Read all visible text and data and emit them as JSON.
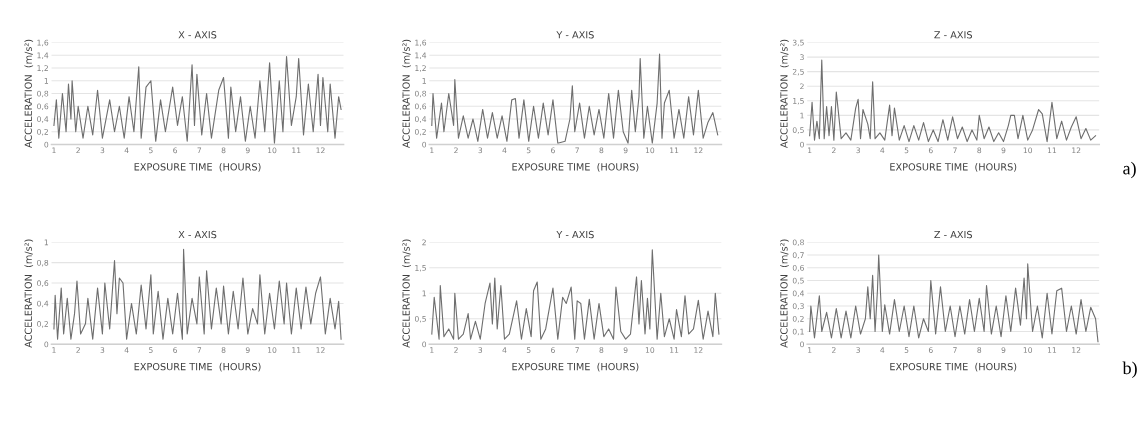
{
  "chart_data": [
    {
      "type": "line",
      "title": "X - AXIS",
      "xlabel": "EXPOSURE TIME  (HOURS)",
      "ylabel": "ACCELERATION  (m/s²)",
      "grid": "y",
      "xlim": [
        0.9,
        12.95
      ],
      "xticks": [
        1,
        2,
        3,
        4,
        5,
        6,
        7,
        8,
        9,
        10,
        11,
        12
      ],
      "ylim": [
        0,
        1.6
      ],
      "yticks": [
        0,
        {
          "value": 0.2,
          "label": "0,2"
        },
        {
          "value": 0.4,
          "label": "0,4"
        },
        {
          "value": 0.6,
          "label": "0,6"
        },
        {
          "value": 0.8,
          "label": "0,8"
        },
        1,
        {
          "value": 1.2,
          "label": "1,2"
        },
        {
          "value": 1.4,
          "label": "1,4"
        },
        {
          "value": 1.6,
          "label": "1,6"
        }
      ],
      "series": [
        {
          "color": "#6e6e6e",
          "x": [
            1.0,
            1.1,
            1.2,
            1.35,
            1.5,
            1.6,
            1.7,
            1.75,
            1.9,
            2.0,
            2.2,
            2.4,
            2.6,
            2.8,
            3.0,
            3.3,
            3.5,
            3.7,
            3.9,
            4.1,
            4.3,
            4.5,
            4.6,
            4.8,
            5.0,
            5.2,
            5.4,
            5.6,
            5.9,
            6.1,
            6.3,
            6.5,
            6.7,
            6.8,
            6.9,
            7.1,
            7.3,
            7.5,
            7.8,
            8.0,
            8.2,
            8.3,
            8.5,
            8.7,
            8.9,
            9.1,
            9.3,
            9.5,
            9.7,
            9.9,
            10.1,
            10.3,
            10.45,
            10.6,
            10.8,
            11.0,
            11.1,
            11.3,
            11.5,
            11.7,
            11.9,
            12.0,
            12.1,
            12.3,
            12.4,
            12.6,
            12.75,
            12.85
          ],
          "values": [
            0.3,
            0.7,
            0.1,
            0.8,
            0.2,
            0.95,
            0.4,
            1.0,
            0.2,
            0.6,
            0.1,
            0.6,
            0.15,
            0.85,
            0.1,
            0.7,
            0.2,
            0.6,
            0.1,
            0.75,
            0.2,
            1.22,
            0.1,
            0.9,
            1.0,
            0.05,
            0.7,
            0.2,
            0.9,
            0.3,
            0.75,
            0.05,
            1.25,
            0.3,
            1.1,
            0.15,
            0.8,
            0.1,
            0.85,
            1.05,
            0.1,
            0.9,
            0.2,
            0.75,
            0.05,
            0.6,
            0.1,
            1.0,
            0.2,
            1.28,
            0.02,
            1.0,
            0.2,
            1.38,
            0.3,
            0.75,
            1.35,
            0.15,
            0.95,
            0.2,
            1.1,
            0.3,
            1.05,
            0.2,
            0.95,
            0.1,
            0.75,
            0.55
          ]
        }
      ]
    },
    {
      "type": "line",
      "title": "Y - AXIS",
      "xlabel": "EXPOSURE TIME  (HOURS)",
      "ylabel": "ACCELERATION  (m/s²)",
      "grid": "y",
      "xlim": [
        0.9,
        12.95
      ],
      "xticks": [
        1,
        2,
        3,
        4,
        5,
        6,
        7,
        8,
        9,
        10,
        11,
        12
      ],
      "ylim": [
        0,
        1.6
      ],
      "yticks": [
        0,
        {
          "value": 0.2,
          "label": "0,2"
        },
        {
          "value": 0.4,
          "label": "0,4"
        },
        {
          "value": 0.6,
          "label": "0,6"
        },
        {
          "value": 0.8,
          "label": "0,8"
        },
        1,
        {
          "value": 1.2,
          "label": "1,2"
        },
        {
          "value": 1.4,
          "label": "1,4"
        },
        {
          "value": 1.6,
          "label": "1,6"
        }
      ],
      "series": [
        {
          "color": "#6e6e6e",
          "x": [
            1.0,
            1.05,
            1.2,
            1.4,
            1.5,
            1.7,
            1.9,
            1.95,
            2.1,
            2.3,
            2.5,
            2.7,
            2.9,
            3.1,
            3.3,
            3.5,
            3.7,
            3.9,
            4.1,
            4.3,
            4.45,
            4.6,
            4.8,
            5.0,
            5.2,
            5.4,
            5.6,
            5.8,
            6.0,
            6.2,
            6.5,
            6.7,
            6.8,
            6.9,
            7.1,
            7.3,
            7.5,
            7.7,
            7.9,
            8.1,
            8.3,
            8.5,
            8.7,
            8.9,
            9.1,
            9.25,
            9.4,
            9.55,
            9.6,
            9.75,
            9.9,
            10.1,
            10.3,
            10.4,
            10.5,
            10.6,
            10.8,
            11.0,
            11.2,
            11.4,
            11.6,
            11.8,
            12.0,
            12.2,
            12.4,
            12.6,
            12.8
          ],
          "values": [
            0.3,
            0.8,
            0.1,
            0.65,
            0.2,
            0.8,
            0.3,
            1.02,
            0.1,
            0.45,
            0.1,
            0.4,
            0.05,
            0.55,
            0.1,
            0.5,
            0.1,
            0.45,
            0.05,
            0.7,
            0.72,
            0.1,
            0.7,
            0.05,
            0.6,
            0.1,
            0.65,
            0.15,
            0.7,
            0.02,
            0.05,
            0.4,
            0.92,
            0.2,
            0.65,
            0.1,
            0.6,
            0.15,
            0.55,
            0.1,
            0.8,
            0.1,
            0.85,
            0.2,
            0.02,
            0.85,
            0.2,
            0.75,
            1.35,
            0.1,
            0.6,
            0.02,
            0.65,
            1.42,
            0.1,
            0.65,
            0.85,
            0.1,
            0.55,
            0.1,
            0.75,
            0.15,
            0.85,
            0.1,
            0.35,
            0.5,
            0.15
          ]
        }
      ]
    },
    {
      "type": "line",
      "title": "Z - AXIS",
      "xlabel": "EXPOSURE TIME  (HOURS)",
      "ylabel": "ACCELERATION  (m/s²)",
      "grid": "y",
      "annotations": [
        "a)"
      ],
      "xlim": [
        0.9,
        12.95
      ],
      "xticks": [
        1,
        2,
        3,
        4,
        5,
        6,
        7,
        8,
        9,
        10,
        11,
        12
      ],
      "ylim": [
        0,
        3.5
      ],
      "yticks": [
        0,
        {
          "value": 0.5,
          "label": "0,5"
        },
        1,
        {
          "value": 1.5,
          "label": "1,5"
        },
        2,
        {
          "value": 2.5,
          "label": "2,5"
        },
        3,
        {
          "value": 3.5,
          "label": "3,5"
        }
      ],
      "series": [
        {
          "color": "#6e6e6e",
          "x": [
            1.0,
            1.1,
            1.2,
            1.3,
            1.4,
            1.5,
            1.6,
            1.7,
            1.8,
            1.9,
            2.0,
            2.1,
            2.3,
            2.5,
            2.7,
            2.9,
            3.0,
            3.1,
            3.2,
            3.4,
            3.5,
            3.6,
            3.7,
            3.9,
            4.1,
            4.3,
            4.4,
            4.5,
            4.7,
            4.9,
            5.1,
            5.3,
            5.5,
            5.7,
            5.9,
            6.1,
            6.3,
            6.5,
            6.7,
            6.9,
            7.1,
            7.3,
            7.5,
            7.7,
            7.9,
            8.0,
            8.2,
            8.4,
            8.6,
            8.8,
            9.0,
            9.2,
            9.3,
            9.45,
            9.6,
            9.8,
            10.0,
            10.2,
            10.45,
            10.6,
            10.8,
            11.0,
            11.2,
            11.4,
            11.6,
            11.8,
            12.0,
            12.2,
            12.4,
            12.6,
            12.8
          ],
          "values": [
            0.3,
            1.45,
            0.15,
            0.8,
            0.2,
            2.9,
            0.2,
            1.3,
            0.3,
            1.3,
            0.15,
            1.8,
            0.2,
            0.4,
            0.15,
            1.25,
            1.55,
            0.2,
            1.2,
            0.7,
            0.2,
            2.15,
            0.2,
            0.4,
            0.15,
            1.35,
            0.3,
            1.25,
            0.15,
            0.65,
            0.1,
            0.65,
            0.15,
            0.75,
            0.1,
            0.5,
            0.1,
            0.85,
            0.15,
            0.95,
            0.2,
            0.6,
            0.1,
            0.5,
            0.15,
            1.0,
            0.2,
            0.6,
            0.1,
            0.4,
            0.1,
            0.65,
            1.0,
            1.0,
            0.2,
            1.0,
            0.15,
            0.5,
            1.2,
            1.05,
            0.1,
            1.45,
            0.2,
            0.8,
            0.15,
            0.6,
            0.95,
            0.2,
            0.55,
            0.15,
            0.3
          ]
        }
      ]
    },
    {
      "type": "line",
      "title": "X - AXIS",
      "xlabel": "EXPOSURE TIME  (HOURS)",
      "ylabel": "ACCELERATION  (m/s²)",
      "grid": "y",
      "xlim": [
        0.9,
        12.95
      ],
      "xticks": [
        1,
        2,
        3,
        4,
        5,
        6,
        7,
        8,
        9,
        10,
        11,
        12
      ],
      "ylim": [
        0,
        1
      ],
      "yticks": [
        0,
        {
          "value": 0.2,
          "label": "0,2"
        },
        {
          "value": 0.4,
          "label": "0,4"
        },
        {
          "value": 0.6,
          "label": "0,6"
        },
        {
          "value": 0.8,
          "label": "0,8"
        },
        1
      ],
      "series": [
        {
          "color": "#6e6e6e",
          "x": [
            1.0,
            1.05,
            1.15,
            1.3,
            1.4,
            1.55,
            1.7,
            1.85,
            1.95,
            2.1,
            2.3,
            2.4,
            2.6,
            2.8,
            3.0,
            3.1,
            3.3,
            3.5,
            3.6,
            3.7,
            3.85,
            4.0,
            4.2,
            4.4,
            4.6,
            4.8,
            5.0,
            5.1,
            5.3,
            5.5,
            5.7,
            5.9,
            6.1,
            6.3,
            6.35,
            6.5,
            6.7,
            6.9,
            7.0,
            7.2,
            7.3,
            7.5,
            7.7,
            7.9,
            8.0,
            8.2,
            8.4,
            8.6,
            8.8,
            9.0,
            9.2,
            9.4,
            9.5,
            9.7,
            9.9,
            10.1,
            10.3,
            10.5,
            10.6,
            10.8,
            11.0,
            11.2,
            11.4,
            11.6,
            11.8,
            12.0,
            12.2,
            12.4,
            12.6,
            12.75,
            12.85
          ],
          "values": [
            0.15,
            0.48,
            0.05,
            0.55,
            0.1,
            0.45,
            0.05,
            0.3,
            0.62,
            0.1,
            0.2,
            0.45,
            0.05,
            0.55,
            0.1,
            0.6,
            0.15,
            0.82,
            0.3,
            0.65,
            0.6,
            0.05,
            0.4,
            0.1,
            0.58,
            0.15,
            0.68,
            0.1,
            0.52,
            0.05,
            0.45,
            0.1,
            0.5,
            0.05,
            0.93,
            0.1,
            0.45,
            0.2,
            0.66,
            0.1,
            0.72,
            0.15,
            0.55,
            0.2,
            0.57,
            0.1,
            0.52,
            0.15,
            0.65,
            0.1,
            0.35,
            0.2,
            0.68,
            0.1,
            0.5,
            0.15,
            0.62,
            0.2,
            0.6,
            0.1,
            0.55,
            0.15,
            0.56,
            0.2,
            0.5,
            0.66,
            0.1,
            0.45,
            0.15,
            0.42,
            0.05
          ]
        }
      ]
    },
    {
      "type": "line",
      "title": "Y - AXIS",
      "xlabel": "EXPOSURE TIME  (HOURS)",
      "ylabel": "ACCELERATION  (m/s²)",
      "grid": "y",
      "xlim": [
        0.9,
        12.95
      ],
      "xticks": [
        1,
        2,
        3,
        4,
        5,
        6,
        7,
        8,
        9,
        10,
        11,
        12
      ],
      "ylim": [
        0,
        2
      ],
      "yticks": [
        0,
        {
          "value": 0.5,
          "label": "0,5"
        },
        1,
        {
          "value": 1.5,
          "label": "1,5"
        },
        2
      ],
      "series": [
        {
          "color": "#6e6e6e",
          "x": [
            1.0,
            1.1,
            1.3,
            1.35,
            1.5,
            1.7,
            1.9,
            1.95,
            2.1,
            2.3,
            2.5,
            2.6,
            2.8,
            3.0,
            3.2,
            3.4,
            3.5,
            3.6,
            3.7,
            3.85,
            4.0,
            4.2,
            4.5,
            4.7,
            4.9,
            5.1,
            5.2,
            5.35,
            5.5,
            5.7,
            6.0,
            6.2,
            6.4,
            6.55,
            6.75,
            6.9,
            7.0,
            7.15,
            7.3,
            7.5,
            7.7,
            7.9,
            8.1,
            8.3,
            8.5,
            8.6,
            8.8,
            9.0,
            9.2,
            9.45,
            9.55,
            9.65,
            9.8,
            9.9,
            10.0,
            10.1,
            10.3,
            10.45,
            10.6,
            10.8,
            11.0,
            11.1,
            11.3,
            11.45,
            11.6,
            11.8,
            12.0,
            12.2,
            12.4,
            12.6,
            12.7,
            12.85
          ],
          "values": [
            0.2,
            0.92,
            0.1,
            1.15,
            0.15,
            0.3,
            0.1,
            1.0,
            0.1,
            0.2,
            0.6,
            0.1,
            0.45,
            0.1,
            0.8,
            1.2,
            0.4,
            1.3,
            0.3,
            1.15,
            0.1,
            0.2,
            0.85,
            0.1,
            0.7,
            0.15,
            1.05,
            1.22,
            0.1,
            0.3,
            1.1,
            0.1,
            0.92,
            0.8,
            1.12,
            0.1,
            0.85,
            0.8,
            0.1,
            0.88,
            0.1,
            0.8,
            0.15,
            0.3,
            0.1,
            1.12,
            0.25,
            0.1,
            0.2,
            1.32,
            0.4,
            1.25,
            0.2,
            0.9,
            0.3,
            1.85,
            0.1,
            1.0,
            0.15,
            0.5,
            0.1,
            0.68,
            0.15,
            0.95,
            0.2,
            0.3,
            0.86,
            0.1,
            0.65,
            0.15,
            1.0,
            0.2
          ]
        }
      ]
    },
    {
      "type": "line",
      "title": "Z - AXIS",
      "xlabel": "EXPOSURE TIME  (HOURS)",
      "ylabel": "ACCELERATION  (m/s²)",
      "grid": "y",
      "annotations": [
        "b)"
      ],
      "xlim": [
        0.9,
        12.95
      ],
      "xticks": [
        1,
        2,
        3,
        4,
        5,
        6,
        7,
        8,
        9,
        10,
        11,
        12
      ],
      "ylim": [
        0,
        0.8
      ],
      "yticks": [
        0,
        {
          "value": 0.1,
          "label": "0,1"
        },
        {
          "value": 0.2,
          "label": "0,2"
        },
        {
          "value": 0.3,
          "label": "0,3"
        },
        {
          "value": 0.4,
          "label": "0,4"
        },
        {
          "value": 0.5,
          "label": "0,5"
        },
        {
          "value": 0.6,
          "label": "0,6"
        },
        {
          "value": 0.7,
          "label": "0,7"
        },
        {
          "value": 0.8,
          "label": "0,8"
        }
      ],
      "series": [
        {
          "color": "#6e6e6e",
          "x": [
            1.0,
            1.05,
            1.2,
            1.4,
            1.5,
            1.7,
            1.9,
            2.1,
            2.3,
            2.5,
            2.7,
            2.9,
            3.1,
            3.3,
            3.4,
            3.5,
            3.6,
            3.7,
            3.8,
            3.85,
            4.0,
            4.1,
            4.3,
            4.5,
            4.7,
            4.9,
            5.1,
            5.3,
            5.5,
            5.7,
            5.9,
            6.0,
            6.2,
            6.4,
            6.6,
            6.8,
            7.0,
            7.2,
            7.4,
            7.6,
            7.8,
            8.0,
            8.2,
            8.3,
            8.5,
            8.7,
            8.9,
            9.1,
            9.3,
            9.5,
            9.7,
            9.85,
            9.95,
            10.0,
            10.2,
            10.4,
            10.6,
            10.8,
            11.0,
            11.2,
            11.4,
            11.6,
            11.8,
            12.0,
            12.2,
            12.4,
            12.6,
            12.8,
            12.9
          ],
          "values": [
            0.1,
            0.3,
            0.05,
            0.38,
            0.1,
            0.25,
            0.05,
            0.28,
            0.05,
            0.26,
            0.05,
            0.3,
            0.08,
            0.2,
            0.45,
            0.2,
            0.54,
            0.1,
            0.43,
            0.7,
            0.1,
            0.31,
            0.08,
            0.35,
            0.1,
            0.3,
            0.06,
            0.3,
            0.05,
            0.2,
            0.1,
            0.5,
            0.08,
            0.45,
            0.1,
            0.3,
            0.06,
            0.3,
            0.08,
            0.35,
            0.1,
            0.36,
            0.1,
            0.46,
            0.08,
            0.3,
            0.06,
            0.38,
            0.1,
            0.44,
            0.15,
            0.52,
            0.2,
            0.63,
            0.1,
            0.3,
            0.05,
            0.4,
            0.08,
            0.42,
            0.44,
            0.1,
            0.3,
            0.08,
            0.35,
            0.1,
            0.29,
            0.2,
            0.02
          ]
        }
      ]
    }
  ]
}
